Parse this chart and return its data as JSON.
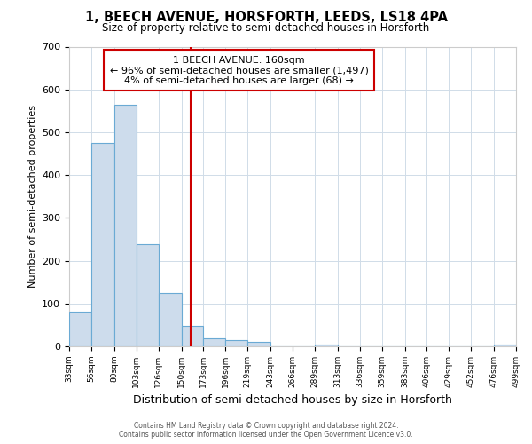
{
  "title": "1, BEECH AVENUE, HORSFORTH, LEEDS, LS18 4PA",
  "subtitle": "Size of property relative to semi-detached houses in Horsforth",
  "xlabel": "Distribution of semi-detached houses by size in Horsforth",
  "ylabel": "Number of semi-detached properties",
  "footer_line1": "Contains HM Land Registry data © Crown copyright and database right 2024.",
  "footer_line2": "Contains public sector information licensed under the Open Government Licence v3.0.",
  "bar_edges": [
    33,
    56,
    80,
    103,
    126,
    150,
    173,
    196,
    219,
    243,
    266,
    289,
    313,
    336,
    359,
    383,
    406,
    429,
    452,
    476,
    499
  ],
  "bar_heights": [
    80,
    475,
    565,
    238,
    125,
    48,
    18,
    15,
    10,
    0,
    0,
    5,
    0,
    0,
    0,
    0,
    0,
    0,
    0,
    5
  ],
  "property_size": 160,
  "property_label": "1 BEECH AVENUE: 160sqm",
  "annotation_line1": "← 96% of semi-detached houses are smaller (1,497)",
  "annotation_line2": "4% of semi-detached houses are larger (68) →",
  "bar_color": "#cddcec",
  "bar_edge_color": "#6aaad4",
  "vline_color": "#cc0000",
  "annotation_box_edgecolor": "#cc0000",
  "ylim": [
    0,
    700
  ],
  "yticks": [
    0,
    100,
    200,
    300,
    400,
    500,
    600,
    700
  ],
  "bg_color": "#ffffff",
  "plot_bg_color": "#ffffff",
  "grid_color": "#d0dce8"
}
